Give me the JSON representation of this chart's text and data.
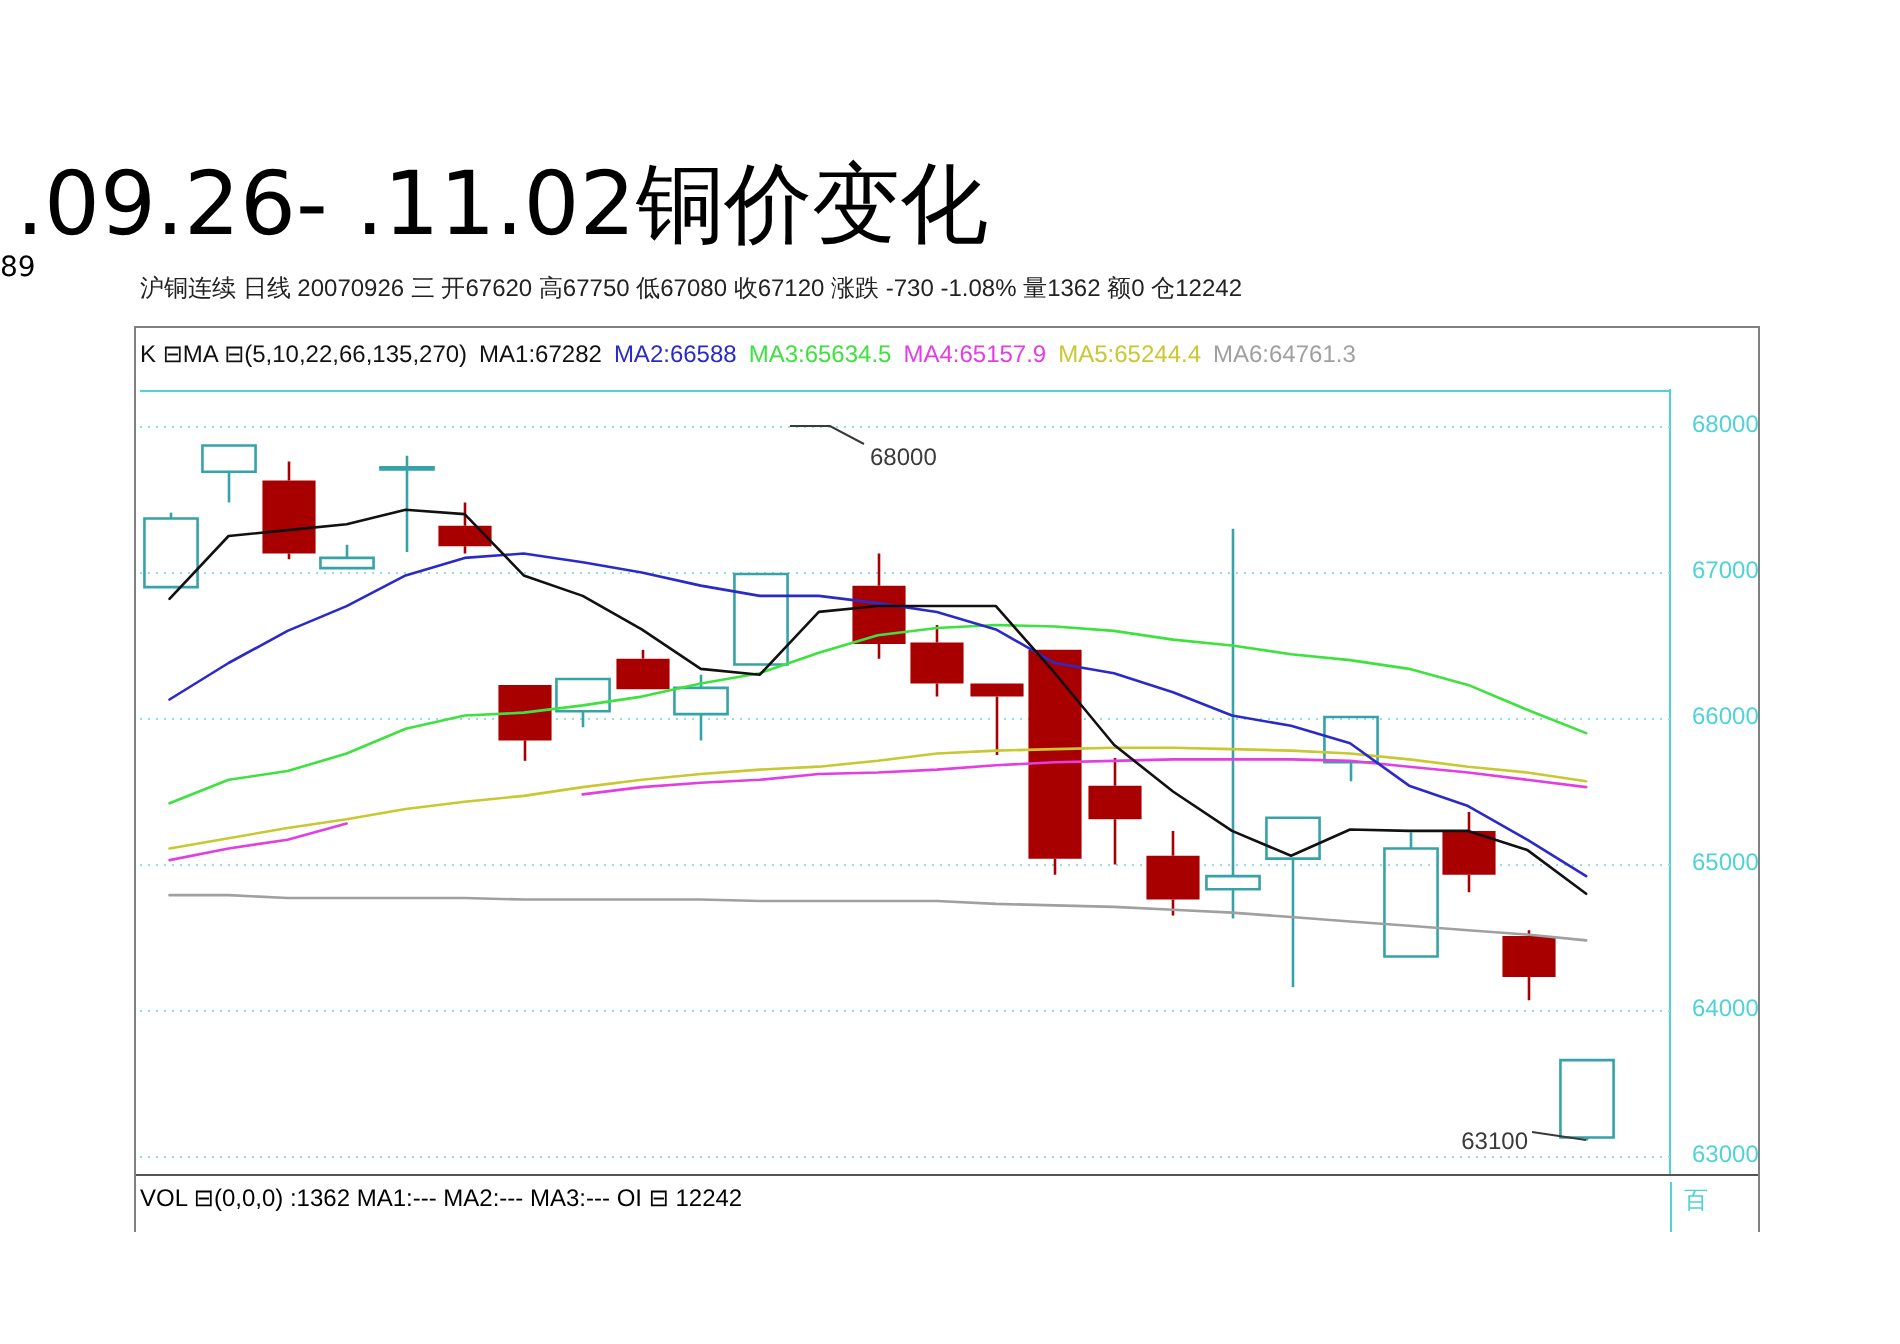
{
  "chart_data": {
    "type": "candlestick",
    "title": ".09.26- .11.02铜价变化",
    "subtitle": "沪铜连续 日线 20070926 三 开67620 高67750 低67080 收67120 涨跌 -730 -1.08% 量1362 额0 仓12242",
    "legend_title": "K ⊟MA ⊟(5,10,22,66,135,270)",
    "categories": [
      null,
      null,
      null,
      null,
      null,
      null,
      null,
      null,
      null,
      null,
      null,
      null,
      null,
      null,
      null,
      null,
      null,
      null,
      null,
      null,
      null,
      null,
      null,
      null,
      null
    ],
    "ohlc": [
      [
        66890,
        67400,
        66890,
        67360
      ],
      [
        67680,
        67860,
        67470,
        67860
      ],
      [
        67620,
        67750,
        67080,
        67120
      ],
      [
        67020,
        67180,
        67020,
        67090
      ],
      [
        67700,
        67790,
        67130,
        67710
      ],
      [
        67310,
        67470,
        67120,
        67170
      ],
      [
        66220,
        66220,
        65700,
        65840
      ],
      [
        66040,
        66260,
        65930,
        66260
      ],
      [
        66400,
        66460,
        66190,
        66190
      ],
      [
        66020,
        66290,
        65840,
        66200
      ],
      [
        66360,
        66980,
        66360,
        66980
      ],
      null,
      [
        66900,
        67120,
        66400,
        66500
      ],
      [
        66510,
        66630,
        66140,
        66230
      ],
      [
        66230,
        66230,
        65740,
        66140
      ],
      [
        66460,
        66460,
        64920,
        65030
      ],
      [
        65530,
        65720,
        64990,
        65300
      ],
      [
        65050,
        65220,
        64640,
        64750
      ],
      [
        64820,
        67290,
        64620,
        64910
      ],
      [
        65030,
        65310,
        64150,
        65310
      ],
      [
        65690,
        66000,
        65560,
        66000
      ],
      [
        64360,
        65210,
        64360,
        65100
      ],
      [
        65220,
        65350,
        64800,
        64920
      ],
      [
        64500,
        64540,
        64060,
        64220
      ],
      [
        63120,
        63650,
        63100,
        63650
      ]
    ],
    "colors": [
      "#36a3a8",
      "#36a3a8",
      "#a80000",
      "#36a3a8",
      "#36a3a8",
      "#a80000",
      "#a80000",
      "#36a3a8",
      "#a80000",
      "#36a3a8",
      "#36a3a8",
      null,
      "#a80000",
      "#a80000",
      "#a80000",
      "#a80000",
      "#a80000",
      "#a80000",
      "#36a3a8",
      "#36a3a8",
      "#36a3a8",
      "#36a3a8",
      "#a80000",
      "#a80000",
      "#36a3a8"
    ],
    "series": [
      {
        "name": "MA1:67282",
        "type": "line",
        "color": "#111111",
        "values": [
          66810,
          67240,
          67280,
          67320,
          67420,
          67390,
          66970,
          66830,
          66600,
          66330,
          66290,
          66720,
          66760,
          66760,
          66760,
          66300,
          65810,
          65490,
          65220,
          65050,
          65230,
          65220,
          65220,
          65090,
          64790
        ]
      },
      {
        "name": "MA2:66588",
        "type": "line",
        "color": "#2a2ac8",
        "values": [
          66120,
          66370,
          66590,
          66760,
          66970,
          67090,
          67120,
          67060,
          66990,
          66900,
          66830,
          66830,
          66780,
          66720,
          66600,
          66370,
          66300,
          66170,
          66010,
          65940,
          65820,
          65530,
          65390,
          65160,
          64910
        ]
      },
      {
        "name": "MA3:65634.5",
        "type": "line",
        "color": "#3ee23e",
        "values": [
          65410,
          65570,
          65630,
          65750,
          65920,
          66010,
          66030,
          66080,
          66140,
          66230,
          66300,
          66440,
          66560,
          66610,
          66630,
          66620,
          66590,
          66530,
          66490,
          66430,
          66390,
          66330,
          66220,
          66050,
          65890
        ]
      },
      {
        "name": "MA4:65157.9",
        "type": "line",
        "color": "#e23ee2",
        "values": [
          65020,
          65100,
          65160,
          65270,
          null,
          null,
          null,
          65470,
          65520,
          65550,
          65570,
          65610,
          65620,
          65640,
          65670,
          65690,
          65700,
          65710,
          65710,
          65710,
          65700,
          65660,
          65620,
          65570,
          65520
        ]
      },
      {
        "name": "MA5:65244.4",
        "type": "line",
        "color": "#c8c832",
        "values": [
          65100,
          65170,
          65240,
          65300,
          65370,
          65420,
          65460,
          65520,
          65570,
          65610,
          65640,
          65660,
          65700,
          65750,
          65770,
          65780,
          65790,
          65790,
          65780,
          65770,
          65750,
          65710,
          65660,
          65620,
          65560
        ]
      },
      {
        "name": "MA6:64761.3",
        "type": "line",
        "color": "#a0a0a0",
        "values": [
          64780,
          64780,
          64760,
          64760,
          64760,
          64760,
          64750,
          64750,
          64750,
          64750,
          64740,
          64740,
          64740,
          64740,
          64720,
          64710,
          64700,
          64680,
          64660,
          64630,
          64600,
          64570,
          64540,
          64510,
          64470
        ]
      }
    ],
    "ylim": [
      62870,
      68240
    ],
    "yticks": [
      63000,
      64000,
      65000,
      66000,
      67000,
      68000
    ],
    "grid": "y",
    "legend": "top left",
    "tick_labels": "y",
    "annotations": [
      "68000",
      "63100",
      "89",
      "VOL ⊟(0,0,0) :1362 MA1:--- MA2:--- MA3:--- OI ⊟ 12242",
      "百"
    ]
  }
}
